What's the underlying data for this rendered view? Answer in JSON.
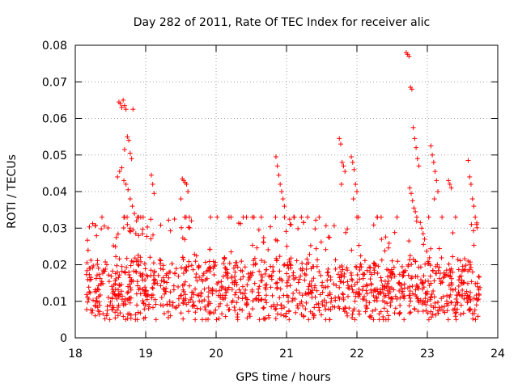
{
  "chart_data": {
    "type": "scatter",
    "title": "Day 282 of 2011, Rate Of TEC Index for receiver alic",
    "xlabel": "GPS time / hours",
    "ylabel": "ROTI / TECUs",
    "xlim": [
      18,
      24
    ],
    "ylim": [
      0,
      0.08
    ],
    "xticks": [
      18,
      19,
      20,
      21,
      22,
      23,
      24
    ],
    "yticks": [
      0,
      0.01,
      0.02,
      0.03,
      0.04,
      0.05,
      0.06,
      0.07,
      0.08
    ],
    "ytick_labels": [
      "0",
      "0.01",
      "0.02",
      "0.03",
      "0.04",
      "0.05",
      "0.06",
      "0.07",
      "0.08"
    ],
    "grid": true,
    "marker": "+",
    "color": "#ff0000",
    "data_x_range": [
      18.15,
      23.75
    ],
    "series": [
      {
        "name": "ROTI",
        "background_level": {
          "from": 0.005,
          "to": 0.03,
          "typical": 0.013
        },
        "x": [
          18.62,
          18.64,
          18.66,
          18.68,
          18.7,
          18.72,
          18.74,
          18.76,
          18.7,
          18.78,
          18.8,
          18.82,
          18.6,
          18.63,
          18.66,
          18.69,
          18.72,
          18.75,
          18.78,
          18.81,
          18.84,
          18.87,
          18.7,
          18.74,
          18.78,
          18.82,
          18.86,
          18.9,
          19.08,
          19.1,
          19.12,
          19.52,
          19.54,
          19.56,
          19.58,
          19.6,
          19.62,
          19.5,
          19.65,
          20.85,
          20.87,
          20.89,
          20.91,
          20.93,
          20.95,
          20.97,
          21.75,
          21.77,
          21.79,
          21.81,
          21.83,
          21.78,
          21.92,
          21.94,
          21.96,
          21.98,
          22.0,
          21.95,
          22.7,
          22.72,
          22.74,
          22.76,
          22.78,
          22.8,
          22.82,
          22.84,
          22.86,
          22.88,
          22.75,
          22.77,
          22.79,
          22.81,
          22.83,
          22.85,
          22.9,
          22.92,
          22.94,
          22.96,
          23.05,
          23.07,
          23.09,
          23.11,
          23.13,
          23.15,
          23.1,
          23.3,
          23.32,
          23.34,
          23.58,
          23.6,
          23.62,
          23.64,
          23.66,
          23.68,
          23.7
        ],
        "y": [
          0.0645,
          0.064,
          0.063,
          0.065,
          0.0635,
          0.0625,
          0.055,
          0.054,
          0.0515,
          0.0505,
          0.049,
          0.0625,
          0.044,
          0.0455,
          0.0465,
          0.043,
          0.042,
          0.0405,
          0.038,
          0.036,
          0.034,
          0.032,
          0.033,
          0.031,
          0.03,
          0.0295,
          0.0285,
          0.028,
          0.0445,
          0.042,
          0.0395,
          0.0435,
          0.043,
          0.0425,
          0.042,
          0.04,
          0.033,
          0.038,
          0.032,
          0.0495,
          0.047,
          0.0445,
          0.042,
          0.04,
          0.038,
          0.036,
          0.0545,
          0.053,
          0.048,
          0.047,
          0.0455,
          0.042,
          0.0495,
          0.048,
          0.046,
          0.042,
          0.04,
          0.038,
          0.078,
          0.0775,
          0.077,
          0.0685,
          0.068,
          0.0575,
          0.0545,
          0.052,
          0.049,
          0.047,
          0.041,
          0.0395,
          0.0375,
          0.0355,
          0.0345,
          0.033,
          0.0315,
          0.03,
          0.0285,
          0.027,
          0.0525,
          0.05,
          0.048,
          0.0455,
          0.043,
          0.04,
          0.038,
          0.043,
          0.042,
          0.041,
          0.0485,
          0.044,
          0.042,
          0.038,
          0.036,
          0.033,
          0.031
        ]
      }
    ]
  }
}
